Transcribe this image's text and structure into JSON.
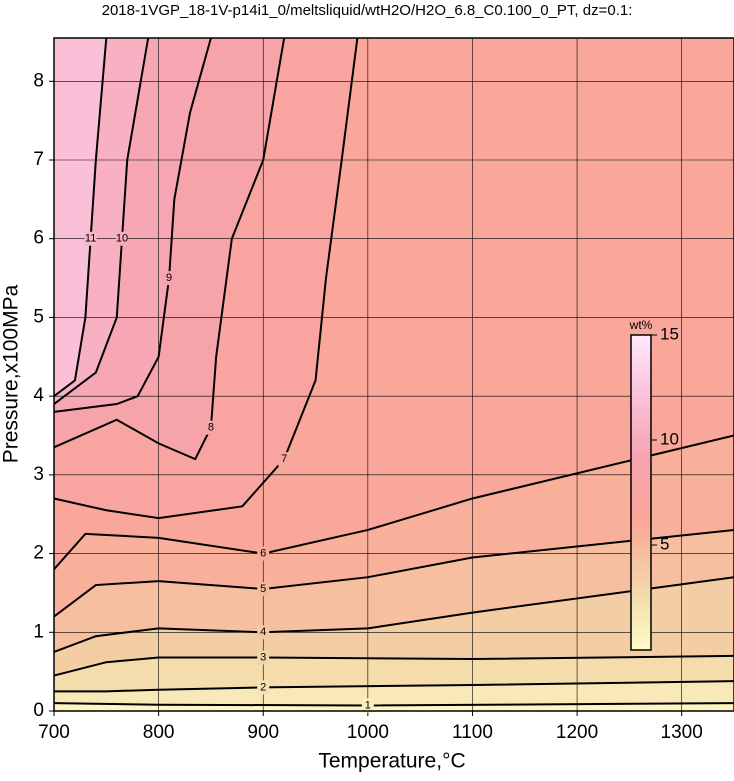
{
  "chart_data": {
    "type": "contour",
    "title": "2018-1VGP_18-1V-p14i1_0/meltsliquid/wtH2O/H2O_6.8_C0.100_0_PT, dz=0.1:",
    "x_label": "Temperature,°C",
    "y_label": "Pressure,x100MPa",
    "xlim": [
      700,
      1350
    ],
    "ylim": [
      0,
      8.55
    ],
    "xticks": [
      700,
      800,
      900,
      1000,
      1100,
      1200,
      1300
    ],
    "yticks": [
      0,
      1,
      2,
      3,
      4,
      5,
      6,
      7,
      8
    ],
    "grid": true,
    "colorbar": {
      "label": "wt%",
      "zlim": [
        0,
        15
      ],
      "ticks": [
        5,
        10,
        15
      ]
    },
    "colors": [
      "#fffcc8",
      "#f2d6a8",
      "#faa898",
      "#f5a2ac",
      "#fac0d8",
      "#ffe8ff"
    ],
    "contours": [
      {
        "level": 1,
        "x": [
          700,
          800,
          1000,
          1350
        ],
        "y": [
          0.1,
          0.08,
          0.07,
          0.1
        ]
      },
      {
        "level": 2,
        "x": [
          700,
          750,
          800,
          900,
          1100,
          1350
        ],
        "y": [
          0.25,
          0.25,
          0.27,
          0.3,
          0.33,
          0.38
        ]
      },
      {
        "level": 3,
        "x": [
          700,
          750,
          800,
          900,
          1100,
          1350
        ],
        "y": [
          0.45,
          0.62,
          0.68,
          0.68,
          0.66,
          0.7
        ]
      },
      {
        "level": 4,
        "x": [
          700,
          740,
          800,
          900,
          1000,
          1100,
          1350
        ],
        "y": [
          0.75,
          0.95,
          1.05,
          1.0,
          1.05,
          1.25,
          1.7
        ]
      },
      {
        "level": 5,
        "x": [
          700,
          740,
          800,
          900,
          1000,
          1100,
          1350
        ],
        "y": [
          1.2,
          1.6,
          1.65,
          1.55,
          1.7,
          1.95,
          2.3
        ]
      },
      {
        "level": 6,
        "x": [
          700,
          730,
          800,
          900,
          1000,
          1100,
          1350
        ],
        "y": [
          1.8,
          2.25,
          2.2,
          2.0,
          2.3,
          2.7,
          3.5
        ]
      },
      {
        "level": 7,
        "x": [
          700,
          750,
          800,
          880,
          920,
          950,
          960,
          975,
          990
        ],
        "y": [
          2.7,
          2.55,
          2.45,
          2.6,
          3.2,
          4.2,
          5.5,
          7.0,
          8.55
        ]
      },
      {
        "level": 8,
        "x": [
          700,
          760,
          800,
          835,
          850,
          855,
          870,
          900,
          920
        ],
        "y": [
          3.35,
          3.7,
          3.4,
          3.2,
          3.6,
          4.5,
          6.0,
          7.0,
          8.55
        ]
      },
      {
        "level": 9,
        "x": [
          700,
          760,
          780,
          800,
          810,
          815,
          830,
          850
        ],
        "y": [
          3.8,
          3.9,
          4.0,
          4.5,
          5.5,
          6.5,
          7.6,
          8.55
        ]
      },
      {
        "level": 10,
        "x": [
          700,
          740,
          760,
          765,
          770,
          790
        ],
        "y": [
          3.9,
          4.3,
          5.0,
          6.0,
          7.0,
          8.55
        ]
      },
      {
        "level": 11,
        "x": [
          700,
          720,
          730,
          735,
          740,
          750
        ],
        "y": [
          4.0,
          4.2,
          5.0,
          6.0,
          7.0,
          8.55
        ]
      }
    ]
  }
}
